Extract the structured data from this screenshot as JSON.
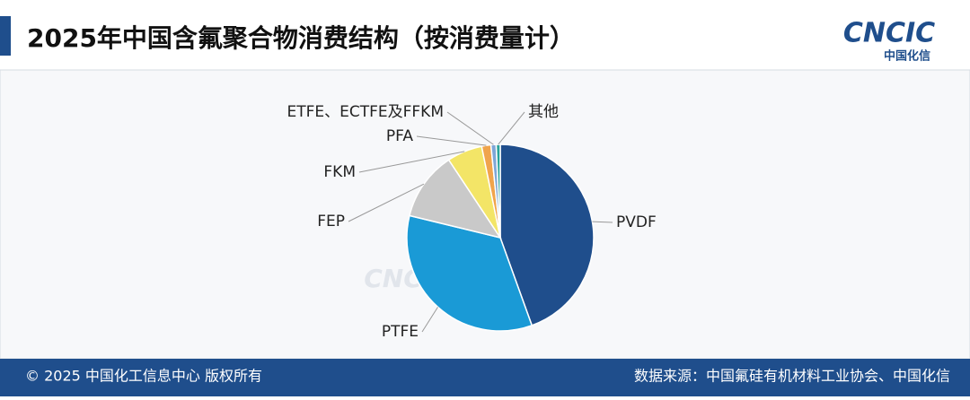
{
  "brand": {
    "logo": "CNCIC",
    "logo_sub": "中国化信"
  },
  "footer": {
    "copyright": "© 2025 中国化工信息中心  版权所有",
    "source": "数据来源：中国氟硅有机材料工业协会、中国化信"
  },
  "chart_data": {
    "type": "pie",
    "title": "2025年中国含氟聚合物消费结构（按消费量计）",
    "categories": [
      "PVDF",
      "PTFE",
      "FEP",
      "FKM",
      "PFA",
      "ETFE、ECTFE及FFKM",
      "其他"
    ],
    "values": [
      44.5,
      34.3,
      11.9,
      6.1,
      1.6,
      0.9,
      0.7
    ],
    "colors": [
      "#1f4e8c",
      "#1a9ad6",
      "#c9c9c9",
      "#f3e567",
      "#f0a44c",
      "#7fa6d6",
      "#2aa39a"
    ]
  }
}
